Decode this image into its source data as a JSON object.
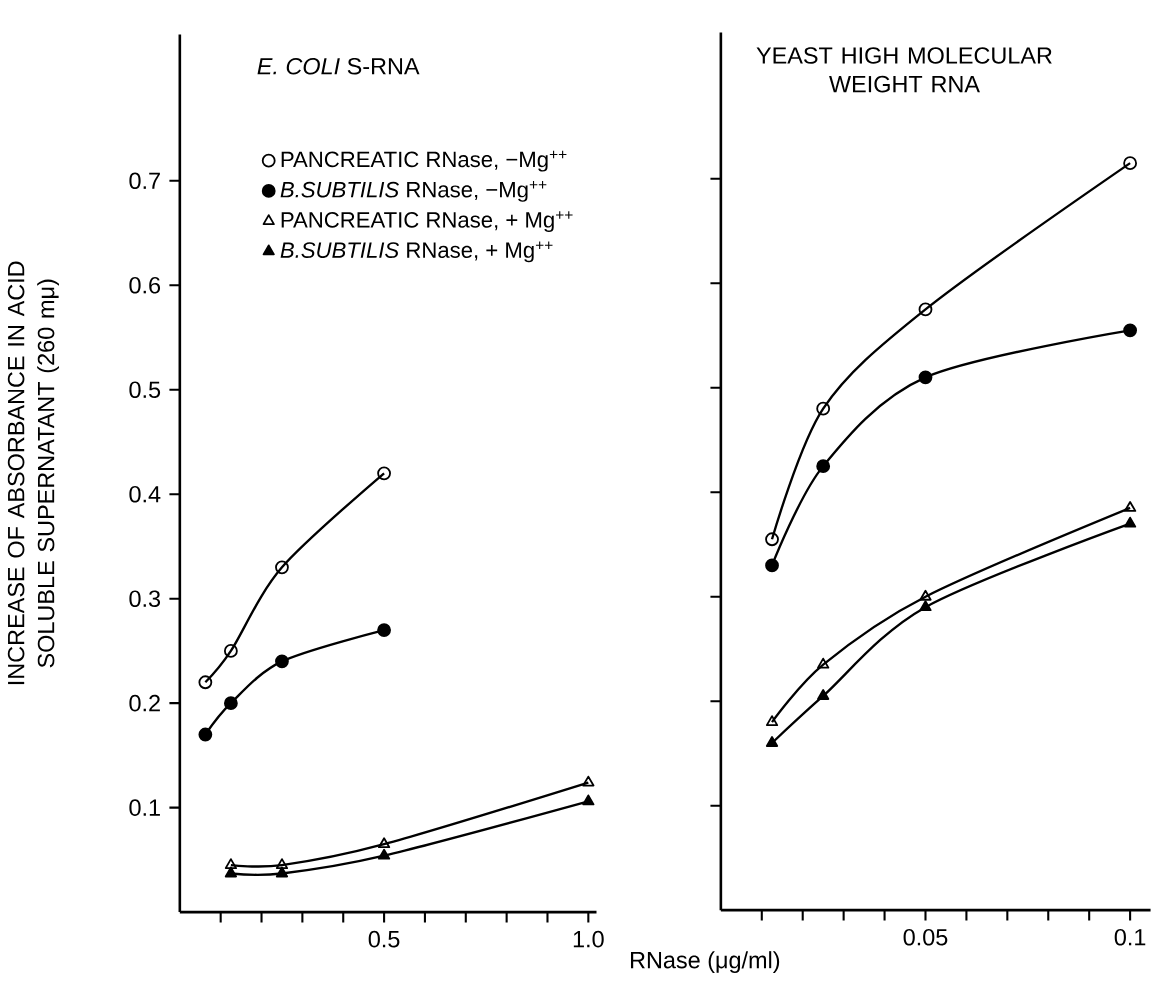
{
  "chart_data": [
    {
      "type": "line",
      "title": "*E. COLI* S-RNA",
      "xlabel": "RNase (μg/ml)",
      "ylabel": "INCREASE OF ABSORBANCE IN ACID SOLUBLE SUPERNATANT (260 mμ)",
      "xlim": [
        0,
        1.02
      ],
      "ylim": [
        0,
        0.84
      ],
      "xticks": [
        {
          "value": 0.1,
          "label": null
        },
        {
          "value": 0.2,
          "label": null
        },
        {
          "value": 0.3,
          "label": null
        },
        {
          "value": 0.4,
          "label": null
        },
        0.5,
        {
          "value": 0.6,
          "label": null
        },
        {
          "value": 0.7,
          "label": null
        },
        {
          "value": 0.8,
          "label": null
        },
        {
          "value": 0.9,
          "label": null
        },
        {
          "value": 1.0,
          "label": "1.0"
        }
      ],
      "yticks": [
        0.1,
        0.2,
        0.3,
        0.4,
        0.5,
        0.6,
        0.7
      ],
      "legend": "top right",
      "grid": false,
      "series": [
        {
          "name": "PANCREATIC RNase, −Mg$^{++}$",
          "color": "#000000",
          "marker": "circle",
          "x": [
            0.0625,
            0.125,
            0.25,
            0.5
          ],
          "values": [
            0.22,
            0.25,
            0.33,
            0.42
          ]
        },
        {
          "name": "*B.SUBTILIS* RNase, −Mg$^{++}$",
          "color": "#000000",
          "marker": "circle",
          "x": [
            0.0625,
            0.125,
            0.25,
            0.5
          ],
          "values": [
            0.17,
            0.2,
            0.24,
            0.27
          ]
        },
        {
          "name": "PANCREATIC RNase, + Mg$^{++}$",
          "color": "#000000",
          "marker": "triangle",
          "x": [
            0.125,
            0.25,
            0.5,
            1.0
          ],
          "values": [
            0.045,
            0.045,
            0.065,
            0.124
          ]
        },
        {
          "name": "*B.SUBTILIS* RNase, + Mg$^{++}$",
          "color": "#000000",
          "marker": "triangle",
          "x": [
            0.125,
            0.25,
            0.5,
            1.0
          ],
          "values": [
            0.037,
            0.037,
            0.054,
            0.106
          ]
        }
      ]
    },
    {
      "type": "line",
      "title": "YEAST HIGH MOLECULAR WEIGHT RNA",
      "xlim": [
        0,
        0.105
      ],
      "ylim": [
        0,
        0.84
      ],
      "xticks": [
        {
          "value": 0.01,
          "label": null
        },
        {
          "value": 0.02,
          "label": null
        },
        {
          "value": 0.03,
          "label": null
        },
        {
          "value": 0.04,
          "label": null
        },
        0.05,
        {
          "value": 0.06,
          "label": null
        },
        {
          "value": 0.07,
          "label": null
        },
        {
          "value": 0.08,
          "label": null
        },
        {
          "value": 0.09,
          "label": null
        },
        0.1
      ],
      "yticks": [
        {
          "value": 0.1,
          "label": null
        },
        {
          "value": 0.2,
          "label": null
        },
        {
          "value": 0.3,
          "label": null
        },
        {
          "value": 0.4,
          "label": null
        },
        {
          "value": 0.5,
          "label": null
        },
        {
          "value": 0.6,
          "label": null
        },
        {
          "value": 0.7,
          "label": null
        }
      ],
      "tick_labels": "x",
      "grid": false,
      "series": [
        {
          "color": "#000000",
          "marker": "circle",
          "x": [
            0.0125,
            0.025,
            0.05,
            0.1
          ],
          "values": [
            0.355,
            0.48,
            0.575,
            0.715
          ]
        },
        {
          "color": "#000000",
          "marker": "circle",
          "x": [
            0.0125,
            0.025,
            0.05,
            0.1
          ],
          "values": [
            0.33,
            0.425,
            0.51,
            0.555
          ]
        },
        {
          "color": "#000000",
          "marker": "triangle",
          "x": [
            0.0125,
            0.025,
            0.05,
            0.1
          ],
          "values": [
            0.18,
            0.235,
            0.3,
            0.385
          ]
        },
        {
          "color": "#000000",
          "marker": "triangle",
          "x": [
            0.0125,
            0.025,
            0.05,
            0.1
          ],
          "values": [
            0.16,
            0.205,
            0.29,
            0.37
          ]
        }
      ]
    }
  ]
}
